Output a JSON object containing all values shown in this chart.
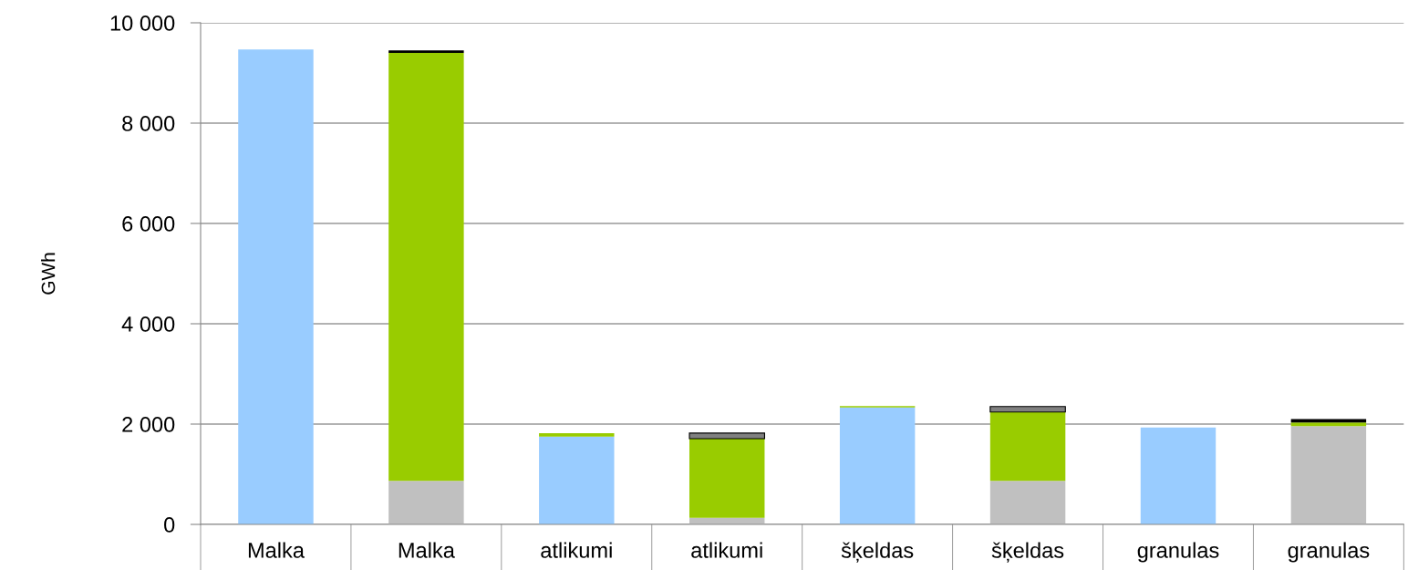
{
  "chart_data": {
    "type": "bar",
    "stacked": true,
    "ylabel": "GWh",
    "categories": [
      "Malka",
      "Malka",
      "atlikumi",
      "atlikumi",
      "šķeldas",
      "šķeldas",
      "granulas",
      "granulas"
    ],
    "series": [
      {
        "color": "#c0c0c0",
        "values": [
          0,
          870,
          0,
          130,
          0,
          870,
          0,
          1960
        ]
      },
      {
        "color": "#99ccff",
        "values": [
          9470,
          0,
          1750,
          0,
          2330,
          0,
          1930,
          0
        ]
      },
      {
        "color": "#99cc00",
        "values": [
          0,
          8530,
          70,
          1580,
          30,
          1370,
          0,
          70
        ]
      },
      {
        "color": "#808080",
        "values": [
          0,
          0,
          0,
          110,
          0,
          110,
          0,
          0
        ]
      },
      {
        "color": "#000000",
        "values": [
          0,
          50,
          0,
          0,
          0,
          0,
          0,
          70
        ]
      }
    ],
    "ylim": [
      0,
      10000
    ],
    "yticks": [
      {
        "value": 0,
        "label": "0"
      },
      {
        "value": 2000,
        "label": "2 000"
      },
      {
        "value": 4000,
        "label": "4 000"
      },
      {
        "value": 6000,
        "label": "6 000"
      },
      {
        "value": 8000,
        "label": "8 000"
      },
      {
        "value": 10000,
        "label": "10 000"
      }
    ],
    "grid": "y"
  }
}
